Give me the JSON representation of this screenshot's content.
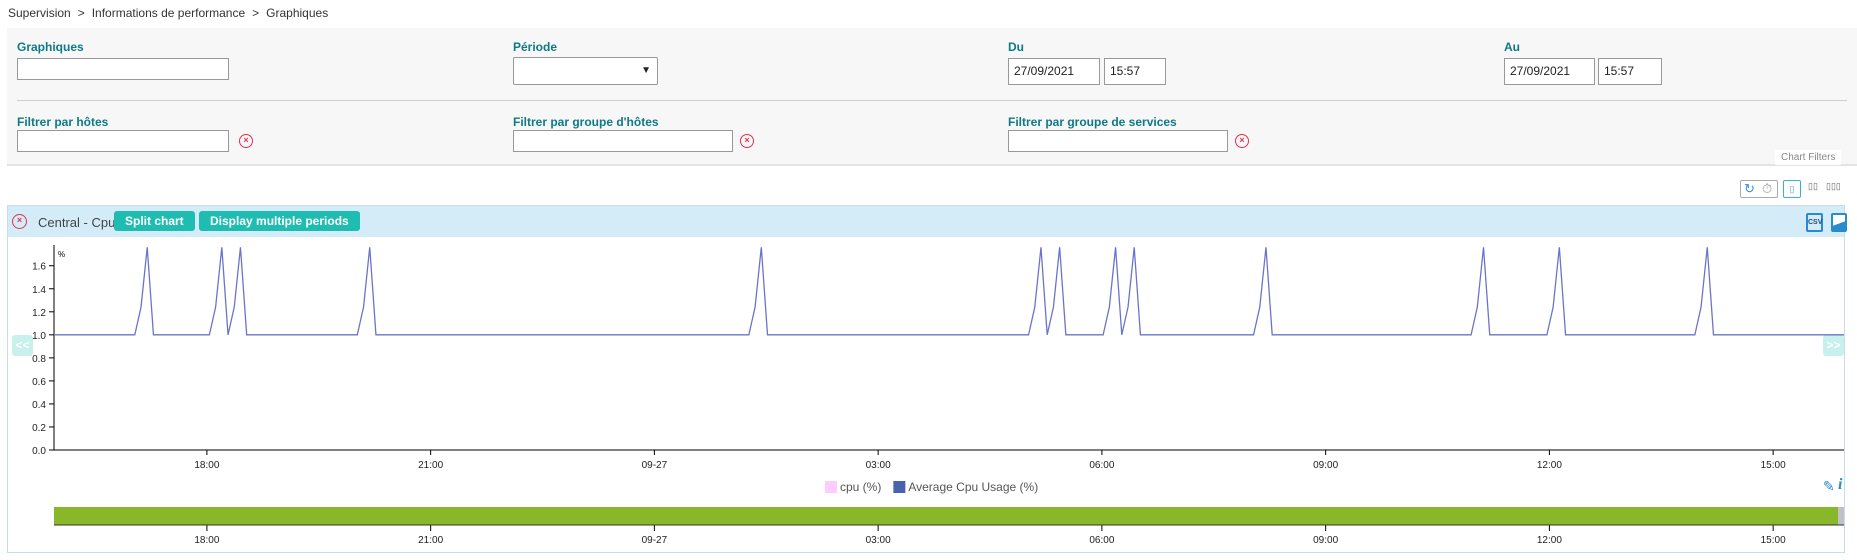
{
  "breadcrumb": [
    "Supervision",
    "Informations de performance",
    "Graphiques"
  ],
  "breadcrumb_separator": ">",
  "filters": {
    "graphiques_label": "Graphiques",
    "graphiques_value": "",
    "periode_label": "Période",
    "periode_value": "",
    "du_label": "Du",
    "du_date": "27/09/2021",
    "du_time": "15:57",
    "au_label": "Au",
    "au_date": "27/09/2021",
    "au_time": "15:57",
    "hosts_label": "Filtrer par hôtes",
    "hosts_value": "",
    "hostgroups_label": "Filtrer par groupe d'hôtes",
    "hostgroups_value": "",
    "servicegroups_label": "Filtrer par groupe de services",
    "servicegroups_value": "",
    "chart_filters_label": "Chart Filters"
  },
  "toolbar": {
    "icons": [
      "refresh-icon",
      "timer-icon",
      "layout-1-column-icon",
      "layout-2-columns-icon",
      "layout-3-columns-icon"
    ],
    "active_layout": 1
  },
  "chart_panel": {
    "title": "Central - Cpu",
    "split_label": "Split chart",
    "multiple_periods_label": "Display multiple periods",
    "prev_label": "<<",
    "next_label": ">>"
  },
  "colors": {
    "accent": "#1fbdb1",
    "label": "#0d7a86",
    "line": "#6b74c8",
    "navigator": "#88b82a",
    "header": "#d3ecf7"
  },
  "chart_data": {
    "type": "line",
    "unit_label": "%",
    "ylim": [
      0,
      1.78
    ],
    "yticks": [
      "0.0",
      "0.2",
      "0.4",
      "0.6",
      "0.8",
      "1.0",
      "1.2",
      "1.4",
      "1.6"
    ],
    "xlim": [
      "09-26 15:57",
      "09-27 15:57"
    ],
    "xticks": [
      "18:00",
      "21:00",
      "09-27",
      "03:00",
      "06:00",
      "09:00",
      "12:00",
      "15:00"
    ],
    "legend": [
      {
        "name": "cpu (%)",
        "color": "#ffccff"
      },
      {
        "name": "Average Cpu Usage (%)",
        "color": "#4b62b0"
      }
    ],
    "series": [
      {
        "name": "Average Cpu Usage (%)",
        "color": "#6b74c8",
        "points": [
          [
            "09-26 15:57",
            1.0
          ],
          [
            "09-26 17:02",
            1.0
          ],
          [
            "09-26 17:07",
            1.24
          ],
          [
            "09-26 17:12",
            1.76
          ],
          [
            "09-26 17:17",
            1.0
          ],
          [
            "09-26 18:02",
            1.0
          ],
          [
            "09-26 18:07",
            1.24
          ],
          [
            "09-26 18:12",
            1.76
          ],
          [
            "09-26 18:17",
            1.0
          ],
          [
            "09-26 18:22",
            1.24
          ],
          [
            "09-26 18:27",
            1.76
          ],
          [
            "09-26 18:32",
            1.0
          ],
          [
            "09-26 20:01",
            1.0
          ],
          [
            "09-26 20:06",
            1.24
          ],
          [
            "09-26 20:11",
            1.76
          ],
          [
            "09-26 20:16",
            1.0
          ],
          [
            "09-27 01:16",
            1.0
          ],
          [
            "09-27 01:21",
            1.24
          ],
          [
            "09-27 01:26",
            1.76
          ],
          [
            "09-27 01:31",
            1.0
          ],
          [
            "09-27 05:01",
            1.0
          ],
          [
            "09-27 05:06",
            1.24
          ],
          [
            "09-27 05:11",
            1.76
          ],
          [
            "09-27 05:16",
            1.0
          ],
          [
            "09-27 05:21",
            1.24
          ],
          [
            "09-27 05:26",
            1.76
          ],
          [
            "09-27 05:31",
            1.0
          ],
          [
            "09-27 06:01",
            1.0
          ],
          [
            "09-27 06:06",
            1.24
          ],
          [
            "09-27 06:11",
            1.76
          ],
          [
            "09-27 06:16",
            1.0
          ],
          [
            "09-27 06:21",
            1.24
          ],
          [
            "09-27 06:26",
            1.76
          ],
          [
            "09-27 06:31",
            1.0
          ],
          [
            "09-27 08:02",
            1.0
          ],
          [
            "09-27 08:07",
            1.24
          ],
          [
            "09-27 08:12",
            1.76
          ],
          [
            "09-27 08:17",
            1.0
          ],
          [
            "09-27 10:57",
            1.0
          ],
          [
            "09-27 11:02",
            1.24
          ],
          [
            "09-27 11:07",
            1.76
          ],
          [
            "09-27 11:12",
            1.0
          ],
          [
            "09-27 11:58",
            1.0
          ],
          [
            "09-27 12:03",
            1.24
          ],
          [
            "09-27 12:08",
            1.76
          ],
          [
            "09-27 12:13",
            1.0
          ],
          [
            "09-27 13:57",
            1.0
          ],
          [
            "09-27 14:02",
            1.24
          ],
          [
            "09-27 14:07",
            1.76
          ],
          [
            "09-27 14:12",
            1.0
          ],
          [
            "09-27 15:57",
            1.0
          ]
        ]
      }
    ],
    "grid": false,
    "legend_position": "bottom"
  },
  "chart_actions": {
    "icons": [
      "csv-export-icon",
      "image-export-icon",
      "pencil-icon",
      "info-icon"
    ]
  }
}
